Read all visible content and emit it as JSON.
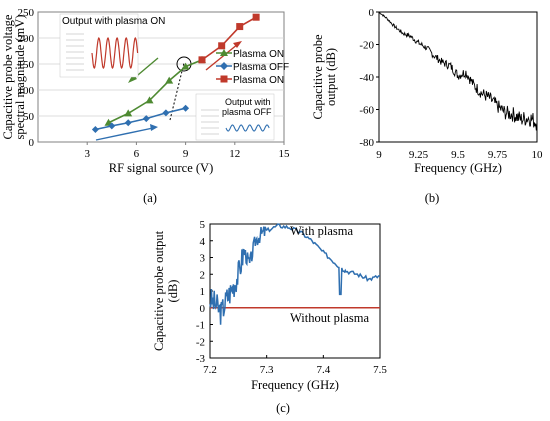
{
  "chart_data": [
    {
      "type": "line",
      "panel_label": "(a)",
      "xlabel": "RF signal source (V)",
      "ylabel": "Capacitive probe voltage spectral magnitude (mV)",
      "ylabel_lines": [
        "Capacitive probe voltage",
        "spectral magnitude (mV)"
      ],
      "xlim": [
        0,
        15
      ],
      "ylim": [
        0,
        250
      ],
      "xticks": [
        3,
        6,
        9,
        12,
        15
      ],
      "yticks": [
        0,
        50,
        100,
        150,
        200,
        250
      ],
      "series": [
        {
          "name": "Plasma ON",
          "color": "#4e8a32",
          "marker": "triangle",
          "x": [
            4.3,
            5.5,
            6.8,
            8.0,
            9.0,
            10.0
          ],
          "y": [
            37,
            55,
            80,
            118,
            145,
            158
          ]
        },
        {
          "name": "Plasma OFF",
          "color": "#2f6fb0",
          "marker": "diamond",
          "x": [
            3.5,
            4.5,
            5.5,
            6.6,
            7.8,
            9.0
          ],
          "y": [
            24,
            31,
            37,
            45,
            56,
            65
          ]
        },
        {
          "name": "Plasma ON",
          "color": "#c0392b",
          "marker": "square",
          "x": [
            10.0,
            11.2,
            12.3,
            13.3
          ],
          "y": [
            158,
            185,
            222,
            240
          ]
        }
      ],
      "annotations": {
        "inset_on_title": "Output with plasma ON",
        "inset_off_title_1": "Output with",
        "inset_off_title_2": "plasma OFF"
      }
    },
    {
      "type": "line",
      "panel_label": "(b)",
      "xlabel": "Frequency (GHz)",
      "ylabel": "Capacitive probe output (dB)",
      "ylabel_lines": [
        "Capacitive probe",
        "output (dB)"
      ],
      "xlim": [
        9,
        10
      ],
      "ylim": [
        -80,
        0
      ],
      "xticks": [
        "9",
        "9.25",
        "9.5",
        "9.75",
        "10"
      ],
      "yticks": [
        0,
        -20,
        -40,
        -60,
        -80
      ],
      "series": [
        {
          "color": "#000000",
          "x": [
            9.0,
            9.05,
            9.1,
            9.15,
            9.2,
            9.25,
            9.3,
            9.35,
            9.4,
            9.45,
            9.5,
            9.55,
            9.6,
            9.65,
            9.7,
            9.75,
            9.8,
            9.85,
            9.9,
            9.95,
            10.0
          ],
          "y": [
            0,
            -4,
            -9,
            -13,
            -15,
            -19,
            -22,
            -27,
            -31,
            -33,
            -39,
            -37,
            -45,
            -50,
            -53,
            -58,
            -62,
            -63,
            -66,
            -65,
            -68
          ]
        }
      ]
    },
    {
      "type": "line",
      "panel_label": "(c)",
      "xlabel": "Frequency (GHz)",
      "ylabel": "Capacitive probe output (dB)",
      "ylabel_lines": [
        "Capacitive probe output",
        "(dB)"
      ],
      "xlim": [
        7.2,
        7.5
      ],
      "ylim": [
        -3,
        5
      ],
      "xticks": [
        "7.2",
        "7.3",
        "7.4",
        "7.5"
      ],
      "yticks": [
        5,
        4,
        3,
        2,
        1,
        0,
        -1,
        -2,
        -3
      ],
      "series": [
        {
          "name": "With plasma",
          "color": "#2f6fb0",
          "x": [
            7.2,
            7.21,
            7.22,
            7.23,
            7.24,
            7.25,
            7.26,
            7.27,
            7.28,
            7.29,
            7.3,
            7.32,
            7.34,
            7.36,
            7.38,
            7.4,
            7.42,
            7.43,
            7.44,
            7.46,
            7.48,
            7.5
          ],
          "y": [
            0.5,
            0.2,
            -0.3,
            0.6,
            1.2,
            2.0,
            3.4,
            2.6,
            4.0,
            4.4,
            4.6,
            4.9,
            4.8,
            4.5,
            4.0,
            3.3,
            2.7,
            2.4,
            2.2,
            2.0,
            1.7,
            1.9
          ]
        },
        {
          "name": "Without plasma",
          "color": "#c0392b",
          "x": [
            7.2,
            7.5
          ],
          "y": [
            0,
            0
          ]
        }
      ]
    }
  ]
}
